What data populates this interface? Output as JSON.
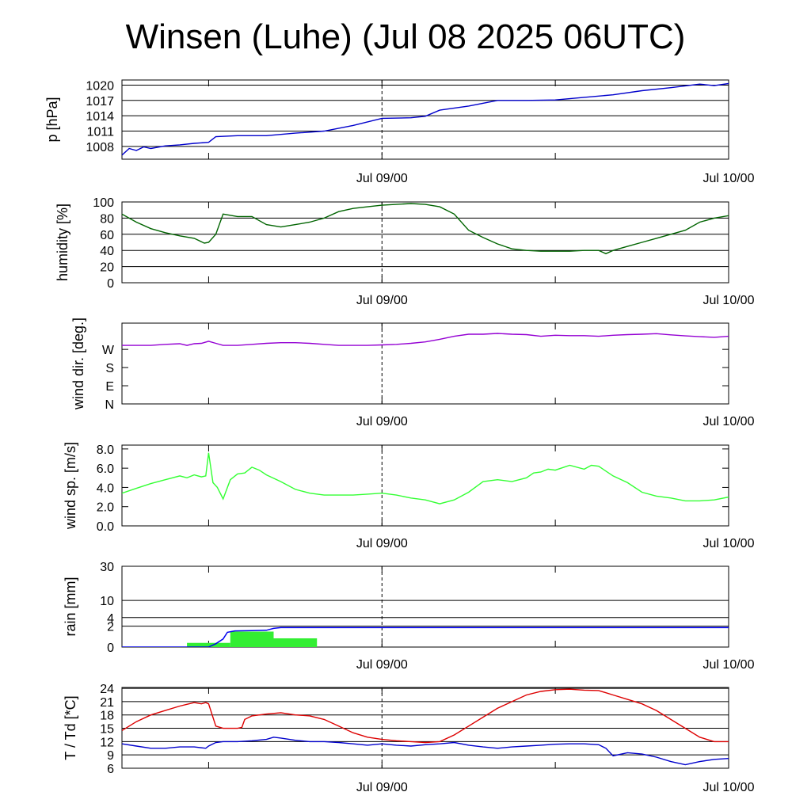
{
  "title": "Winsen (Luhe) (Jul 08 2025 06UTC)",
  "time_axis": {
    "hours_span": 42,
    "tick_labels": [
      {
        "t": 18,
        "label": "Jul 09/00"
      },
      {
        "t": 42,
        "label": "Jul 10/00"
      }
    ],
    "minor_ticks": [
      6,
      30
    ],
    "midline": 18
  },
  "colors": {
    "pressure": "#0000cc",
    "humidity": "#006400",
    "wind_dir": "#9400d3",
    "wind_speed": "#33ff33",
    "rain_bars": "#33ee33",
    "rain_line": "#0000ee",
    "temperature": "#dd0000",
    "dewpoint": "#0000cc"
  },
  "chart_data": [
    {
      "type": "line",
      "name": "pressure",
      "ylabel": "p [hPa]",
      "ylim": [
        1005.5,
        1021
      ],
      "yticks": [
        1008,
        1011,
        1014,
        1017,
        1020
      ],
      "ytick_labels": [
        "1008",
        "1011",
        "1014",
        "1017",
        "1020"
      ],
      "grid": true,
      "series": [
        {
          "x": [
            0,
            0.5,
            1,
            1.5,
            2,
            3,
            4,
            5,
            6,
            6.5,
            8,
            10,
            12,
            14,
            16,
            18,
            20,
            21,
            22,
            24,
            26,
            28,
            30,
            32,
            34,
            36,
            38,
            40,
            41,
            42
          ],
          "y": [
            1006.3,
            1007.6,
            1007.2,
            1007.9,
            1007.6,
            1008.1,
            1008.3,
            1008.6,
            1008.8,
            1009.9,
            1010.1,
            1010.1,
            1010.6,
            1011.0,
            1012.1,
            1013.5,
            1013.6,
            1013.9,
            1015.1,
            1015.9,
            1017.0,
            1017.0,
            1017.1,
            1017.6,
            1018.1,
            1018.9,
            1019.5,
            1020.2,
            1019.9,
            1020.3
          ]
        }
      ]
    },
    {
      "type": "line",
      "name": "humidity",
      "ylabel": "humidity [%]",
      "ylim": [
        0,
        100
      ],
      "yticks": [
        0,
        20,
        40,
        60,
        80,
        100
      ],
      "ytick_labels": [
        "0",
        "20",
        "40",
        "60",
        "80",
        "100"
      ],
      "grid": true,
      "series": [
        {
          "x": [
            0,
            1,
            2,
            3,
            4,
            5,
            5.7,
            6,
            6.5,
            7,
            8,
            9,
            10,
            11,
            12,
            13,
            14,
            15,
            16,
            17,
            18,
            20,
            21,
            22,
            23,
            24,
            25,
            26,
            27,
            28,
            29,
            30,
            31,
            32,
            33,
            33.5,
            34,
            35,
            36,
            37,
            38,
            39,
            40,
            41,
            42
          ],
          "y": [
            85,
            75,
            67,
            62,
            58,
            55,
            49,
            50,
            60,
            85,
            82,
            82,
            72,
            69,
            72,
            75,
            80,
            88,
            92,
            94,
            96,
            98,
            97,
            94,
            85,
            65,
            56,
            48,
            42,
            40,
            39,
            39,
            39,
            40,
            40,
            36,
            40,
            45,
            50,
            55,
            60,
            65,
            75,
            80,
            83
          ]
        }
      ]
    },
    {
      "type": "line",
      "name": "wind_direction",
      "ylabel": "wind dir. [deg.]",
      "ylim": [
        0,
        400
      ],
      "yticks": [
        0,
        90,
        180,
        270
      ],
      "ytick_labels": [
        "N",
        "E",
        "S",
        "W"
      ],
      "grid": false,
      "series": [
        {
          "x": [
            0,
            1,
            2,
            3,
            4,
            4.5,
            5,
            5.5,
            6,
            6.5,
            7,
            8,
            9,
            10,
            11,
            12,
            13,
            14,
            15,
            16,
            17,
            18,
            19,
            20,
            21,
            22,
            23,
            24,
            25,
            26,
            27,
            28,
            29,
            30,
            31,
            32,
            33,
            34,
            35,
            36,
            37,
            38,
            39,
            40,
            41,
            42
          ],
          "y": [
            290,
            290,
            290,
            295,
            298,
            290,
            298,
            300,
            310,
            300,
            290,
            290,
            295,
            300,
            303,
            303,
            300,
            295,
            290,
            290,
            290,
            292,
            295,
            300,
            307,
            320,
            335,
            345,
            345,
            349,
            345,
            343,
            335,
            340,
            338,
            338,
            335,
            340,
            343,
            345,
            348,
            342,
            337,
            333,
            330,
            335
          ]
        }
      ]
    },
    {
      "type": "line",
      "name": "wind_speed",
      "ylabel": "wind sp. [m/s]",
      "ylim": [
        0,
        8.4
      ],
      "yticks": [
        0,
        2,
        4,
        6,
        8
      ],
      "ytick_labels": [
        "0.0",
        "2.0",
        "4.0",
        "6.0",
        "8.0"
      ],
      "grid": false,
      "series": [
        {
          "x": [
            0,
            1,
            2,
            3,
            4,
            4.5,
            5,
            5.5,
            5.8,
            6,
            6.3,
            6.6,
            7,
            7.5,
            8,
            8.5,
            9,
            9.5,
            10,
            11,
            12,
            13,
            14,
            15,
            16,
            17,
            18,
            19,
            20,
            21,
            22,
            23,
            24,
            25,
            26,
            27,
            28,
            28.5,
            29,
            29.5,
            30,
            31,
            32,
            32.5,
            33,
            34,
            35,
            36,
            37,
            38,
            39,
            40,
            41,
            42
          ],
          "y": [
            3.4,
            3.9,
            4.4,
            4.8,
            5.2,
            5.0,
            5.3,
            5.1,
            5.2,
            7.6,
            4.5,
            4.0,
            2.8,
            4.8,
            5.4,
            5.5,
            6.1,
            5.8,
            5.3,
            4.6,
            3.8,
            3.4,
            3.2,
            3.2,
            3.2,
            3.3,
            3.4,
            3.2,
            2.9,
            2.7,
            2.3,
            2.7,
            3.5,
            4.6,
            4.8,
            4.6,
            5.0,
            5.5,
            5.6,
            5.9,
            5.8,
            6.3,
            5.9,
            6.3,
            6.2,
            5.2,
            4.5,
            3.5,
            3.1,
            2.9,
            2.6,
            2.6,
            2.7,
            3.0
          ]
        }
      ]
    },
    {
      "type": "bar",
      "name": "rain",
      "ylabel": "rain [mm]",
      "scale": "sqrt",
      "ylim": [
        0,
        30
      ],
      "yticks": [
        0,
        2,
        4,
        10,
        30
      ],
      "ytick_labels": [
        "0",
        "2",
        "4",
        "10",
        "30"
      ],
      "grid": true,
      "bars": [
        {
          "x0": 4.5,
          "x1": 7.5,
          "value": 0.08
        },
        {
          "x0": 7.5,
          "x1": 10.5,
          "value": 1.1
        },
        {
          "x0": 10.5,
          "x1": 13.5,
          "value": 0.35
        }
      ],
      "accumulated": {
        "x": [
          0,
          6,
          6.5,
          7,
          7.3,
          7.8,
          9,
          10,
          10.5,
          11,
          42
        ],
        "y": [
          0,
          0,
          0.05,
          0.3,
          1.0,
          1.2,
          1.25,
          1.3,
          1.6,
          1.75,
          1.75
        ]
      }
    },
    {
      "type": "line",
      "name": "temperature_dewpoint",
      "ylabel": "T / Td [*C]",
      "ylim": [
        6,
        24.2
      ],
      "yticks": [
        6,
        9,
        12,
        15,
        18,
        21,
        24
      ],
      "ytick_labels": [
        "6",
        "9",
        "12",
        "15",
        "18",
        "21",
        "24"
      ],
      "grid": true,
      "series": [
        {
          "name": "T",
          "x": [
            0,
            1,
            2,
            3,
            4,
            5,
            5.5,
            5.8,
            6,
            6.5,
            7,
            8,
            8.3,
            8.5,
            9,
            10,
            11,
            12,
            13,
            14,
            15,
            16,
            17,
            18,
            19,
            20,
            21,
            22,
            23,
            24,
            25,
            26,
            27,
            28,
            29,
            30,
            31,
            32,
            33,
            34,
            35,
            36,
            37,
            38,
            39,
            40,
            41,
            42
          ],
          "y": [
            14.5,
            16.5,
            18.0,
            19.0,
            20.0,
            20.8,
            20.5,
            20.8,
            20.5,
            15.5,
            15.0,
            15.0,
            15.2,
            17.0,
            17.8,
            18.2,
            18.5,
            18.0,
            17.8,
            17.0,
            15.5,
            14.0,
            13.0,
            12.5,
            12.2,
            12.0,
            11.8,
            12.0,
            13.5,
            15.5,
            17.5,
            19.5,
            21.0,
            22.5,
            23.3,
            23.7,
            23.8,
            23.6,
            23.5,
            22.5,
            21.5,
            20.5,
            19.0,
            17.0,
            15.0,
            13.0,
            12.0,
            12.0
          ]
        },
        {
          "name": "Td",
          "x": [
            0,
            1,
            2,
            3,
            4,
            5,
            5.8,
            6,
            6.5,
            7,
            8,
            9,
            10,
            10.5,
            11,
            12,
            13,
            14,
            15,
            16,
            17,
            18,
            19,
            20,
            21,
            22,
            23,
            24,
            25,
            26,
            27,
            28,
            29,
            30,
            31,
            32,
            33,
            33.5,
            34,
            35,
            36,
            37,
            38,
            39,
            40,
            41,
            42
          ],
          "y": [
            11.5,
            11.0,
            10.5,
            10.5,
            10.8,
            10.8,
            10.5,
            11.0,
            11.8,
            12.0,
            12.0,
            12.2,
            12.5,
            13.0,
            12.8,
            12.3,
            12.0,
            12.0,
            11.8,
            11.5,
            11.2,
            11.5,
            11.2,
            11.0,
            11.3,
            11.5,
            11.8,
            11.2,
            10.8,
            10.5,
            10.8,
            11.0,
            11.2,
            11.4,
            11.5,
            11.5,
            11.3,
            10.5,
            8.8,
            9.5,
            9.2,
            8.5,
            7.5,
            6.8,
            7.5,
            8.0,
            8.2
          ]
        }
      ]
    }
  ]
}
